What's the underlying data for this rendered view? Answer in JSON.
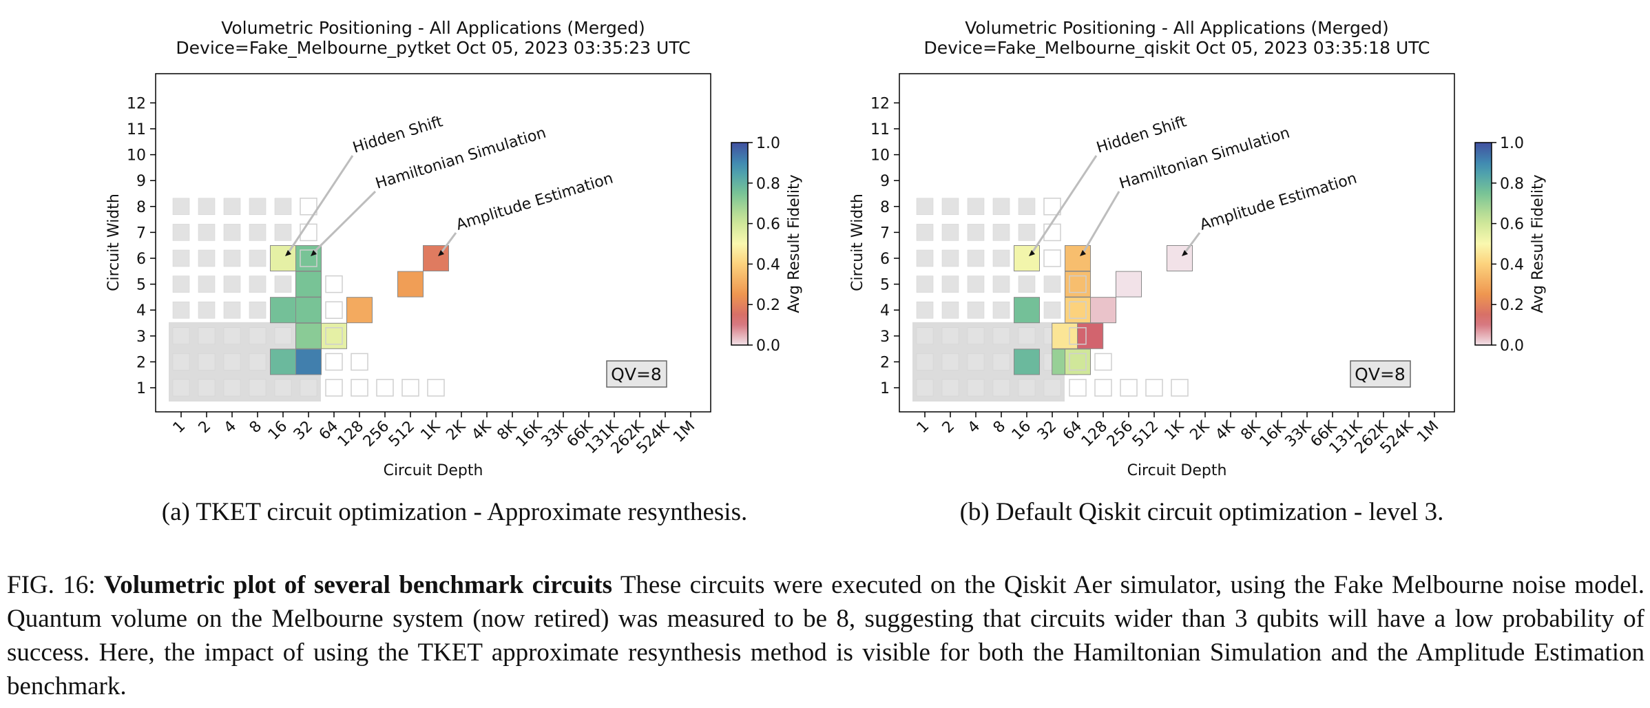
{
  "figure": {
    "number": "FIG. 16:",
    "caption_bold": "Volumetric plot of several benchmark circuits",
    "caption_text": "These circuits were executed on the Qiskit Aer simulator, using the Fake Melbourne noise model. Quantum volume on the Melbourne system (now retired) was measured to be 8, suggesting that circuits wider than 3 qubits will have a low probability of success. Here, the impact of using the TKET approximate resynthesis method is visible for both the Hamiltonian Simulation and the Amplitude Estimation benchmark."
  },
  "colors": {
    "background_square": "#e2e2e2",
    "qv_region": "#dcdcdc",
    "axis": "#000000",
    "annotation_line": "#bdbdbd"
  },
  "chart_data": [
    {
      "type": "heatmap",
      "subcaption": "(a) TKET circuit optimization - Approximate resynthesis.",
      "title": "Volumetric Positioning - All Applications (Merged)",
      "subtitle": "Device=Fake_Melbourne_pytket  Oct 05, 2023 03:35:23 UTC",
      "xlabel": "Circuit Depth",
      "ylabel": "Circuit Width",
      "x_tick_labels": [
        "1",
        "2",
        "4",
        "8",
        "16",
        "32",
        "64",
        "128",
        "256",
        "512",
        "1K",
        "2K",
        "4K",
        "8K",
        "16K",
        "33K",
        "66K",
        "131K",
        "262K",
        "524K",
        "1M"
      ],
      "y_tick_labels": [
        "1",
        "2",
        "3",
        "4",
        "5",
        "6",
        "7",
        "8",
        "9",
        "10",
        "11",
        "12"
      ],
      "x_scale": "log2",
      "qv_label": "QV=8",
      "quantum_volume": 8,
      "colorbar": {
        "label": "Avg Result Fidelity",
        "range": [
          0.0,
          1.0
        ],
        "ticks": [
          "0.0",
          "0.2",
          "0.4",
          "0.6",
          "0.8",
          "1.0"
        ]
      },
      "background_squares": [
        {
          "width": 1,
          "max_depth": "32",
          "empty_to": "1K"
        },
        {
          "width": 2,
          "max_depth": "32",
          "empty_to": "128"
        },
        {
          "width": 3,
          "max_depth": "32",
          "empty_to": "64"
        },
        {
          "width": 4,
          "max_depth": "32",
          "empty_to": "64"
        },
        {
          "width": 5,
          "max_depth": "32",
          "empty_to": "64"
        },
        {
          "width": 6,
          "max_depth": "16",
          "empty_to": "32"
        },
        {
          "width": 7,
          "max_depth": "16",
          "empty_to": "32"
        },
        {
          "width": 8,
          "max_depth": "16",
          "empty_to": "32"
        }
      ],
      "data_points": [
        {
          "depth": "16",
          "width": 6,
          "fidelity": 0.55
        },
        {
          "depth": "32",
          "width": 6,
          "fidelity": 0.75
        },
        {
          "depth": "32",
          "width": 5,
          "fidelity": 0.75
        },
        {
          "depth": "32",
          "width": 4,
          "fidelity": 0.75
        },
        {
          "depth": "32",
          "width": 3,
          "fidelity": 0.72
        },
        {
          "depth": "32",
          "width": 2,
          "fidelity": 0.92
        },
        {
          "depth": "16",
          "width": 4,
          "fidelity": 0.76
        },
        {
          "depth": "16",
          "width": 2,
          "fidelity": 0.78
        },
        {
          "depth": "64",
          "width": 3,
          "fidelity": 0.55
        },
        {
          "depth": "128",
          "width": 4,
          "fidelity": 0.3
        },
        {
          "depth": "512",
          "width": 5,
          "fidelity": 0.27
        },
        {
          "depth": "1K",
          "width": 6,
          "fidelity": 0.18
        }
      ],
      "annotations": [
        {
          "text": "Hidden Shift",
          "depth": "16",
          "width": 6
        },
        {
          "text": "Hamiltonian Simulation",
          "depth": "32",
          "width": 6
        },
        {
          "text": "Amplitude Estimation",
          "depth": "1K",
          "width": 6
        }
      ]
    },
    {
      "type": "heatmap",
      "subcaption": "(b) Default Qiskit circuit optimization - level 3.",
      "title": "Volumetric Positioning - All Applications (Merged)",
      "subtitle": "Device=Fake_Melbourne_qiskit  Oct 05, 2023 03:35:18 UTC",
      "xlabel": "Circuit Depth",
      "ylabel": "Circuit Width",
      "x_tick_labels": [
        "1",
        "2",
        "4",
        "8",
        "16",
        "32",
        "64",
        "128",
        "256",
        "512",
        "1K",
        "2K",
        "4K",
        "8K",
        "16K",
        "33K",
        "66K",
        "131K",
        "262K",
        "524K",
        "1M"
      ],
      "y_tick_labels": [
        "1",
        "2",
        "3",
        "4",
        "5",
        "6",
        "7",
        "8",
        "9",
        "10",
        "11",
        "12"
      ],
      "x_scale": "log2",
      "qv_label": "QV=8",
      "quantum_volume": 8,
      "colorbar": {
        "label": "Avg Result Fidelity",
        "range": [
          0.0,
          1.0
        ],
        "ticks": [
          "0.0",
          "0.2",
          "0.4",
          "0.6",
          "0.8",
          "1.0"
        ]
      },
      "background_squares": [
        {
          "width": 1,
          "max_depth": "32",
          "empty_to": "1K"
        },
        {
          "width": 2,
          "max_depth": "32",
          "empty_to": "128"
        },
        {
          "width": 3,
          "max_depth": "32",
          "empty_to": "64"
        },
        {
          "width": 4,
          "max_depth": "32",
          "empty_to": "64"
        },
        {
          "width": 5,
          "max_depth": "32",
          "empty_to": "64"
        },
        {
          "width": 6,
          "max_depth": "16",
          "empty_to": "32"
        },
        {
          "width": 7,
          "max_depth": "16",
          "empty_to": "32"
        },
        {
          "width": 8,
          "max_depth": "16",
          "empty_to": "32"
        }
      ],
      "data_points": [
        {
          "depth": "16",
          "width": 6,
          "fidelity": 0.52
        },
        {
          "depth": "64",
          "width": 6,
          "fidelity": 0.35
        },
        {
          "depth": "64",
          "width": 5,
          "fidelity": 0.35
        },
        {
          "depth": "64",
          "width": 4,
          "fidelity": 0.4
        },
        {
          "depth": "64",
          "width": 3,
          "fidelity": 0.28
        },
        {
          "depth": "45",
          "width": 3,
          "fidelity": 0.45
        },
        {
          "depth": "90",
          "width": 3,
          "fidelity": 0.12
        },
        {
          "depth": "16",
          "width": 4,
          "fidelity": 0.76
        },
        {
          "depth": "16",
          "width": 2,
          "fidelity": 0.78
        },
        {
          "depth": "45",
          "width": 2,
          "fidelity": 0.7
        },
        {
          "depth": "64",
          "width": 2,
          "fidelity": 0.6
        },
        {
          "depth": "128",
          "width": 4,
          "fidelity": 0.03
        },
        {
          "depth": "256",
          "width": 5,
          "fidelity": 0.0
        },
        {
          "depth": "1K",
          "width": 6,
          "fidelity": 0.0
        }
      ],
      "annotations": [
        {
          "text": "Hidden Shift",
          "depth": "16",
          "width": 6
        },
        {
          "text": "Hamiltonian Simulation",
          "depth": "64",
          "width": 6
        },
        {
          "text": "Amplitude Estimation",
          "depth": "1K",
          "width": 6
        }
      ]
    }
  ]
}
